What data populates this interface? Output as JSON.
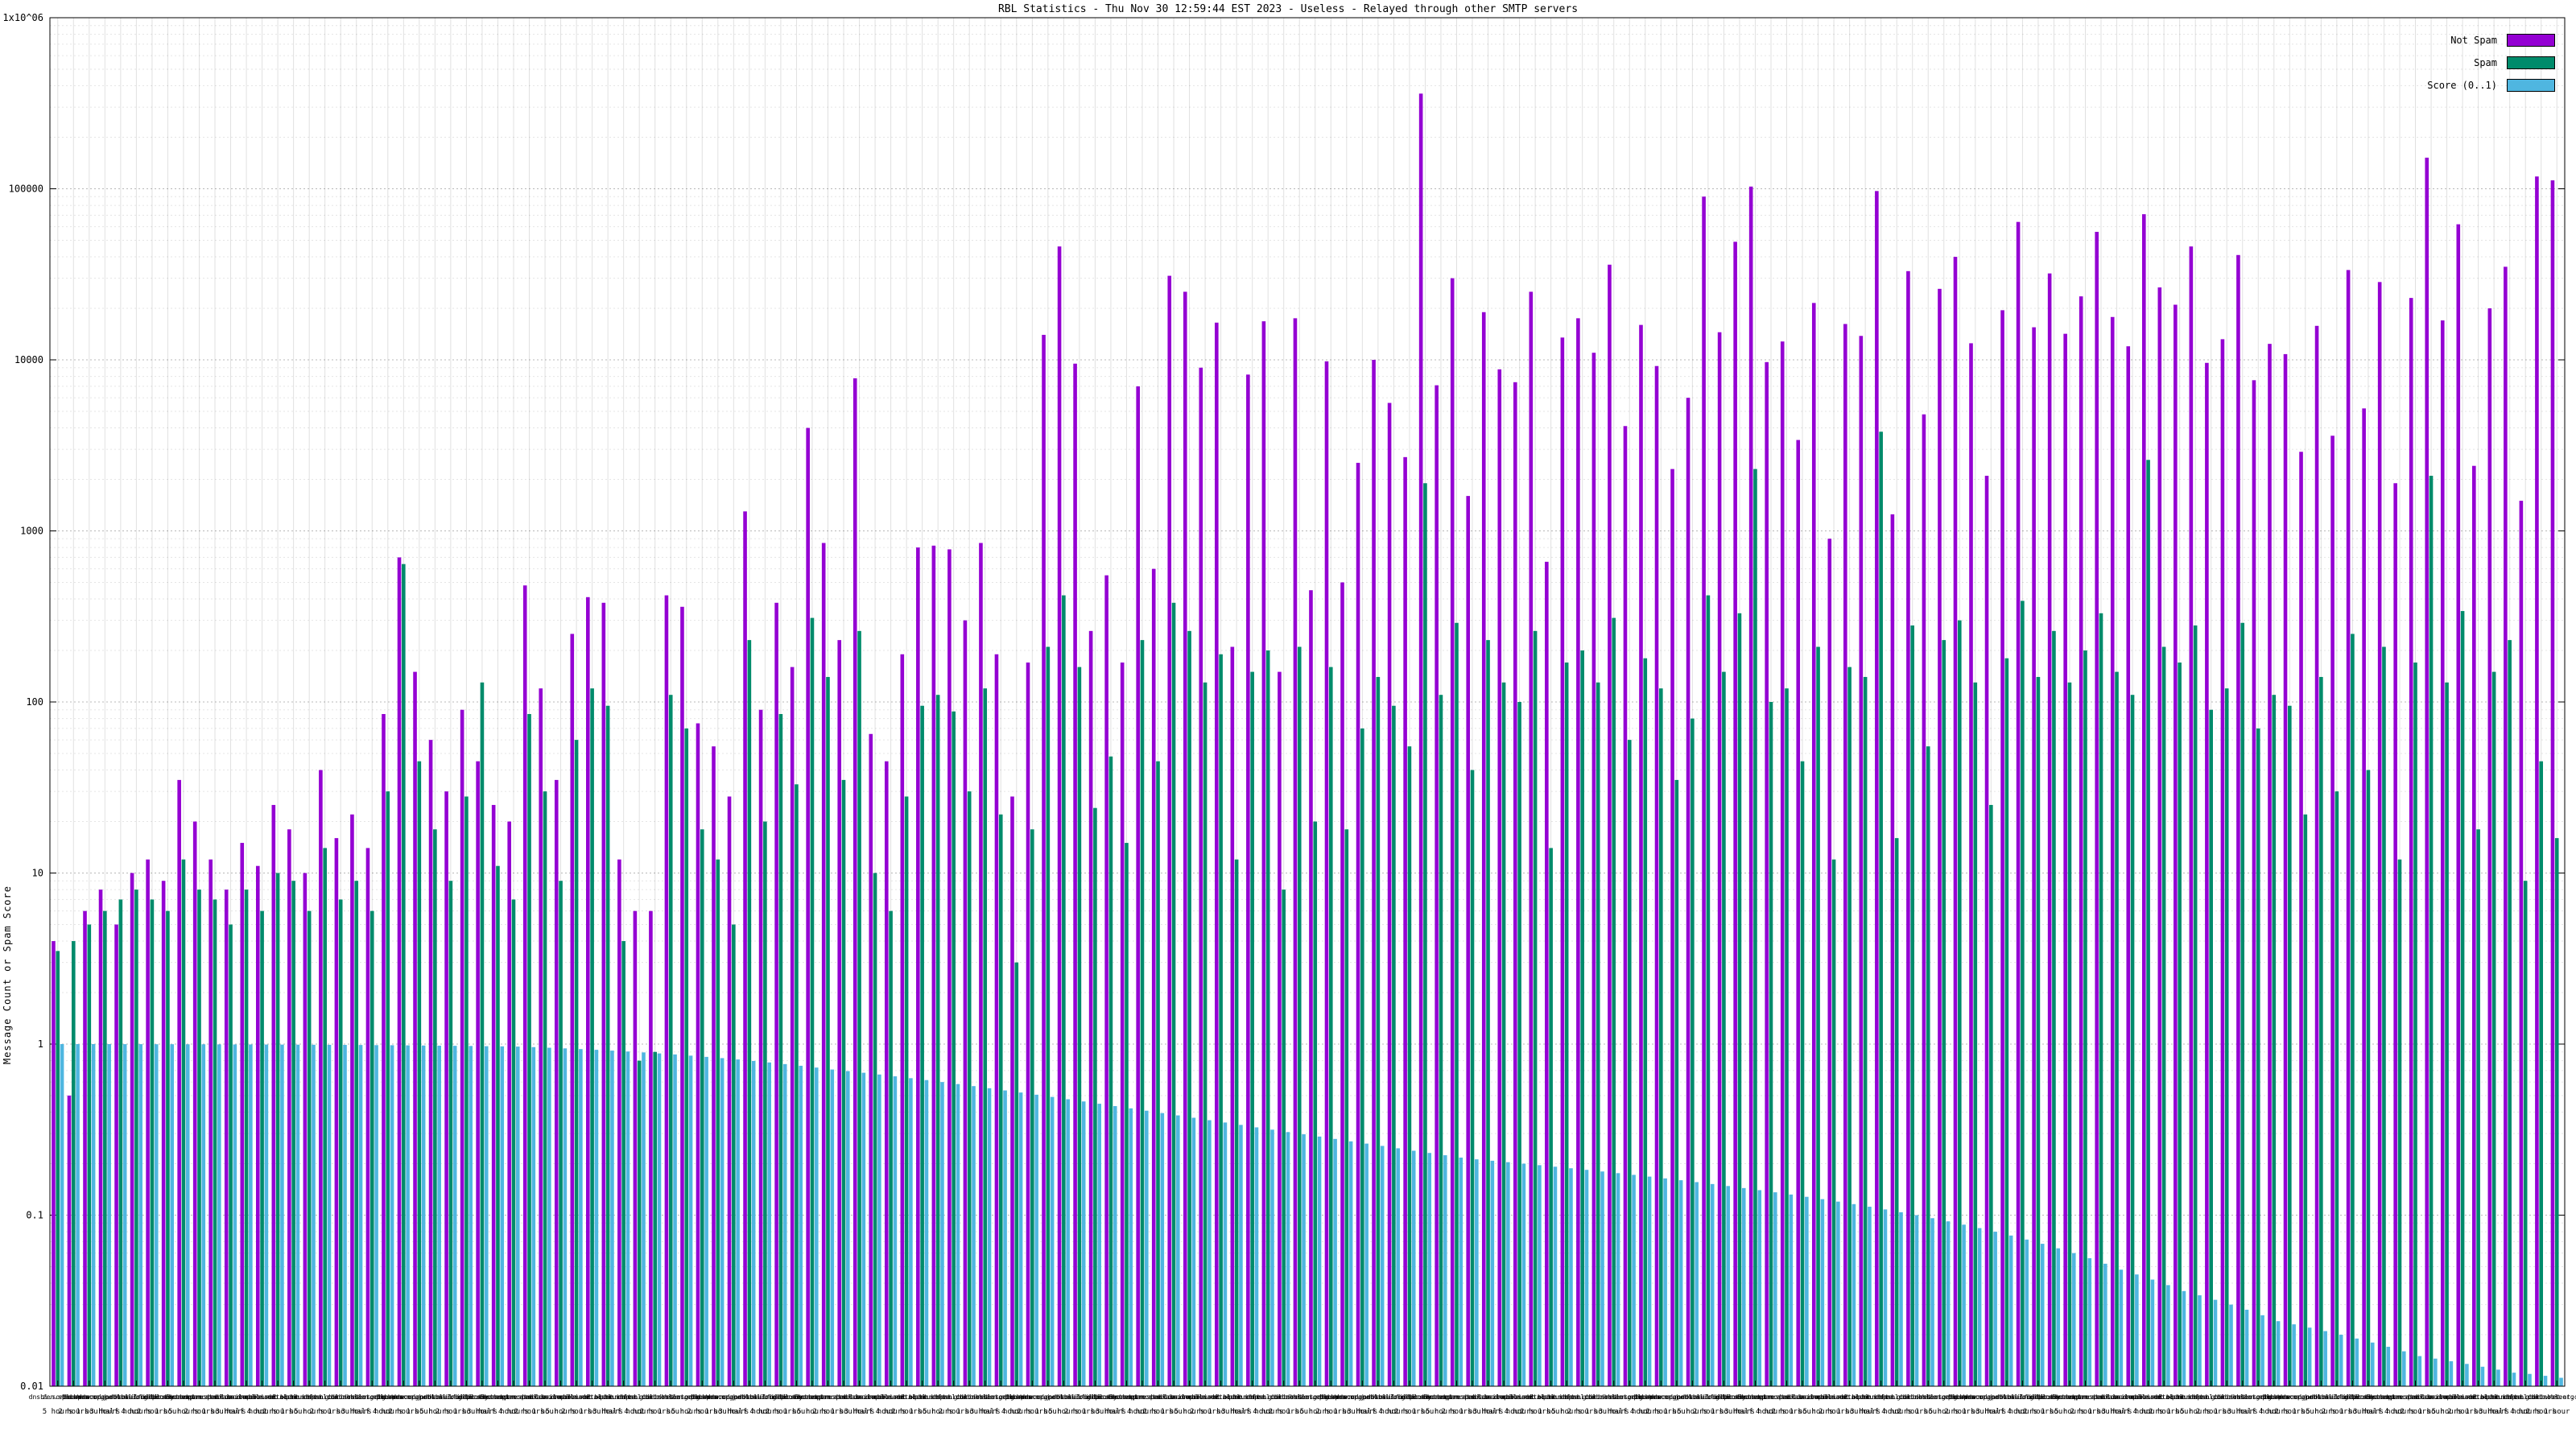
{
  "chart_data": {
    "type": "bar",
    "title": "RBL Statistics - Thu Nov 30 12:59:44 EST 2023 - Useless - Relayed through other SMTP servers",
    "ylabel": "Message Count or Spam Score",
    "xlabel": "",
    "yscale": "log",
    "ylim": [
      0.01,
      1000000
    ],
    "grid": true,
    "legend_position": "top-right",
    "ytick_labels": [
      "0.01",
      "0.1",
      "1",
      "10",
      "100",
      "1000",
      "10000",
      "100000",
      "1x10^06"
    ],
    "ytick_values": [
      0.01,
      0.1,
      1,
      10,
      100,
      1000,
      10000,
      100000,
      1000000
    ],
    "legend": [
      {
        "label": "Not Spam",
        "color": "#9400d3"
      },
      {
        "label": "Spam",
        "color": "#008b6b"
      },
      {
        "label": "Score (0..1)",
        "color": "#4fb6e0"
      }
    ],
    "x_hosts_cycle": [
      "dnsbl.sorbs.net",
      "zen.spamhaus.org",
      "bl.spamcop.net",
      "b.barracudacentral.org",
      "hostkarma.junkemailfilter.com",
      "psbl.surriel.com",
      "dnsbl-1.uceprotect.net",
      "all.s5h.net",
      "ubl.unsubscore.com",
      "dyna.spamrats.com",
      "noptr.spamrats.com",
      "spam.dnsbl.anonmails.de",
      "bl.mailspike.net",
      "ix.dnsbl.manitu.net",
      "combined.abuse.ch",
      "db.wpbl.info",
      "bl.nordspam.com",
      "truncate.gbudb.net",
      "dnsbl.dronebl.org",
      "cbl.abuseat.org"
    ],
    "x_times_cycle": [
      "5 hours",
      "2 hours",
      "1 hour",
      "3 hours",
      "half hour",
      "4 hours",
      "2 hours",
      "1 hour"
    ],
    "series": [
      {
        "name": "Not Spam",
        "color": "#9400d3",
        "values": [
          4,
          0.5,
          6,
          8,
          5,
          10,
          12,
          9,
          35,
          20,
          12,
          8,
          15,
          11,
          25,
          18,
          10,
          40,
          16,
          22,
          14,
          85,
          700,
          150,
          60,
          30,
          90,
          45,
          25,
          20,
          480,
          120,
          35,
          250,
          410,
          380,
          12,
          6,
          6,
          420,
          360,
          75,
          55,
          28,
          1300,
          90,
          380,
          160,
          4000,
          850,
          230,
          7800,
          65,
          45,
          190,
          800,
          820,
          780,
          300,
          850,
          190,
          28,
          170,
          14000,
          46000,
          9500,
          260,
          550,
          170,
          7000,
          600,
          31000,
          25000,
          9000,
          16500,
          210,
          8200,
          16800,
          150,
          17500,
          450,
          9800,
          500,
          2500,
          10000,
          5600,
          2700,
          360000,
          7100,
          30000,
          1600,
          19000,
          8800,
          7400,
          25000,
          660,
          13500,
          17500,
          11000,
          36000,
          4100,
          16000,
          9200,
          2300,
          6000,
          90000,
          14500,
          49000,
          103000,
          9700,
          12800,
          3400,
          21500,
          900,
          16200,
          13800,
          97000,
          1250,
          33000,
          4800,
          26000,
          40000,
          12500,
          2100,
          19500,
          64000,
          15500,
          32000,
          14200,
          23500,
          56000,
          17800,
          12000,
          71000,
          26500,
          21000,
          46000,
          9600,
          13200,
          41000,
          7600,
          12400,
          10800,
          2900,
          15800,
          3600,
          33500,
          5200,
          28500,
          1900,
          23000,
          152000,
          17000,
          62000,
          2400,
          20000,
          35000,
          1500,
          118000,
          112000
        ]
      },
      {
        "name": "Spam",
        "color": "#008b6b",
        "values": [
          3.5,
          4,
          5,
          6,
          7,
          8,
          7,
          6,
          12,
          8,
          7,
          5,
          8,
          6,
          10,
          9,
          6,
          14,
          7,
          9,
          6,
          30,
          640,
          45,
          18,
          9,
          28,
          130,
          11,
          7,
          85,
          30,
          9,
          60,
          120,
          95,
          4,
          0.8,
          0.9,
          110,
          70,
          18,
          12,
          5,
          230,
          20,
          85,
          33,
          310,
          140,
          35,
          260,
          10,
          6,
          28,
          95,
          110,
          88,
          30,
          120,
          22,
          3,
          18,
          210,
          420,
          160,
          24,
          48,
          15,
          230,
          45,
          380,
          260,
          130,
          190,
          12,
          150,
          200,
          8,
          210,
          20,
          160,
          18,
          70,
          140,
          95,
          55,
          1900,
          110,
          290,
          40,
          230,
          130,
          100,
          260,
          14,
          170,
          200,
          130,
          310,
          60,
          180,
          120,
          35,
          80,
          420,
          150,
          330,
          2300,
          100,
          120,
          45,
          210,
          12,
          160,
          140,
          3800,
          16,
          280,
          55,
          230,
          300,
          130,
          25,
          180,
          390,
          140,
          260,
          130,
          200,
          330,
          150,
          110,
          2600,
          210,
          170,
          280,
          90,
          120,
          290,
          70,
          110,
          95,
          22,
          140,
          30,
          250,
          40,
          210,
          12,
          170,
          2100,
          130,
          340,
          18,
          150,
          230,
          9,
          45,
          16
        ]
      },
      {
        "name": "Score (0..1)",
        "color": "#4fb6e0",
        "values": [
          1.0,
          1.0,
          1.0,
          1.0,
          0.999,
          0.999,
          0.998,
          0.998,
          0.997,
          0.997,
          0.996,
          0.995,
          0.995,
          0.994,
          0.993,
          0.992,
          0.991,
          0.99,
          0.989,
          0.988,
          0.986,
          0.985,
          0.983,
          0.981,
          0.979,
          0.977,
          0.975,
          0.972,
          0.97,
          0.967,
          0.96,
          0.952,
          0.944,
          0.935,
          0.926,
          0.916,
          0.905,
          0.894,
          0.882,
          0.87,
          0.856,
          0.842,
          0.828,
          0.813,
          0.797,
          0.781,
          0.764,
          0.747,
          0.729,
          0.71,
          0.695,
          0.68,
          0.664,
          0.648,
          0.632,
          0.616,
          0.6,
          0.584,
          0.568,
          0.552,
          0.536,
          0.521,
          0.506,
          0.491,
          0.476,
          0.462,
          0.448,
          0.434,
          0.421,
          0.408,
          0.395,
          0.383,
          0.371,
          0.359,
          0.348,
          0.337,
          0.326,
          0.316,
          0.306,
          0.297,
          0.288,
          0.279,
          0.27,
          0.262,
          0.254,
          0.246,
          0.238,
          0.231,
          0.224,
          0.217,
          0.212,
          0.208,
          0.204,
          0.2,
          0.196,
          0.192,
          0.188,
          0.184,
          0.18,
          0.176,
          0.172,
          0.168,
          0.164,
          0.16,
          0.156,
          0.152,
          0.148,
          0.144,
          0.14,
          0.136,
          0.132,
          0.128,
          0.124,
          0.12,
          0.116,
          0.112,
          0.108,
          0.104,
          0.1,
          0.096,
          0.092,
          0.088,
          0.084,
          0.08,
          0.076,
          0.072,
          0.068,
          0.064,
          0.06,
          0.056,
          0.052,
          0.048,
          0.045,
          0.042,
          0.039,
          0.036,
          0.034,
          0.032,
          0.03,
          0.028,
          0.026,
          0.024,
          0.023,
          0.022,
          0.021,
          0.02,
          0.019,
          0.018,
          0.017,
          0.016,
          0.015,
          0.0145,
          0.014,
          0.0135,
          0.013,
          0.0125,
          0.012,
          0.0118,
          0.0115,
          0.0112
        ]
      }
    ]
  }
}
